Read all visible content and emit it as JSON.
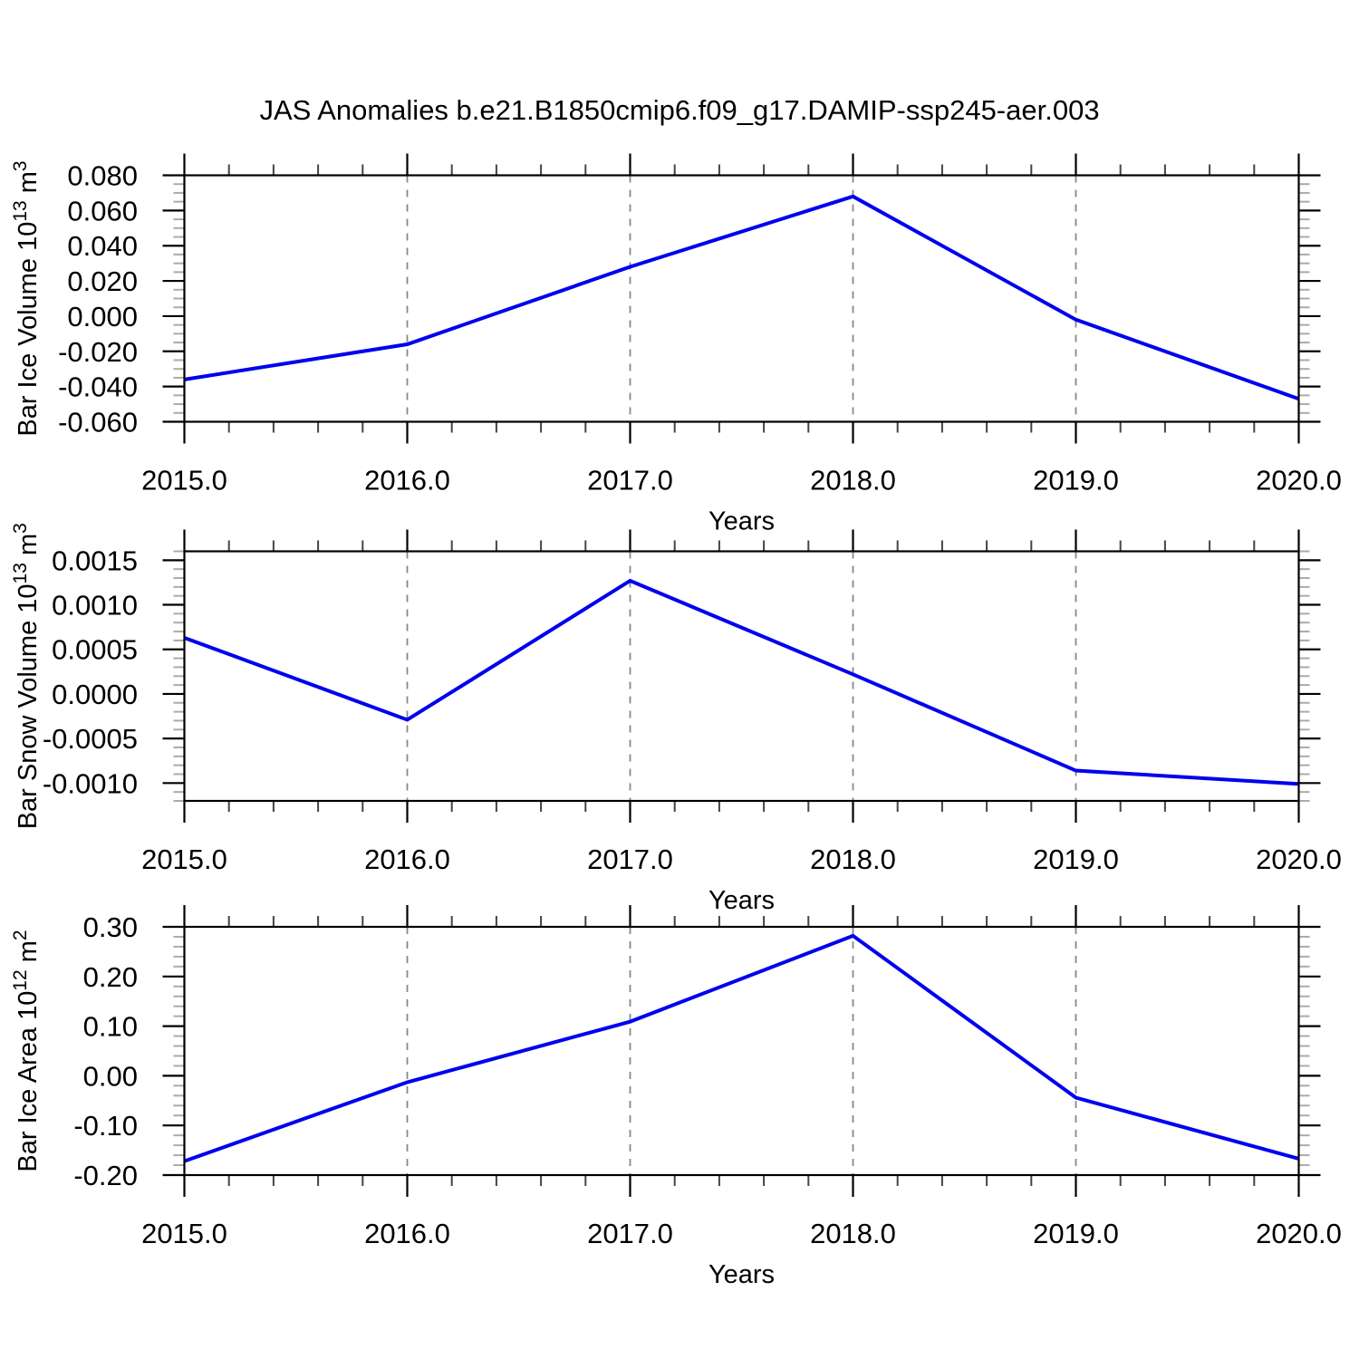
{
  "title": "JAS Anomalies b.e21.B1850cmip6.f09_g17.DAMIP-ssp245-aer.003",
  "chart_data": [
    {
      "type": "line",
      "name": "bar-ice-volume",
      "ylabel": "Bar Ice Volume 10^13 m^3",
      "ylabel_segments": [
        {
          "t": "Bar Ice Volume 10"
        },
        {
          "t": "13",
          "sup": true
        },
        {
          "t": " m"
        },
        {
          "t": "3",
          "sup": true
        }
      ],
      "xlabel": "Years",
      "x": [
        2015,
        2016,
        2017,
        2018,
        2019,
        2020
      ],
      "values": [
        -0.036,
        -0.016,
        0.028,
        0.068,
        -0.002,
        -0.047
      ],
      "xlim": [
        2015,
        2020
      ],
      "ylim": [
        -0.06,
        0.08
      ],
      "x_ticks": [
        2015,
        2016,
        2017,
        2018,
        2019,
        2020
      ],
      "x_tick_labels": [
        "2015.0",
        "2016.0",
        "2017.0",
        "2018.0",
        "2019.0",
        "2020.0"
      ],
      "y_ticks": [
        0.08,
        0.06,
        0.04,
        0.02,
        0.0,
        -0.02,
        -0.04,
        -0.06
      ],
      "y_tick_labels": [
        "0.080",
        "0.060",
        "0.040",
        "0.020",
        "0.000",
        "-0.020",
        "-0.040",
        "-0.060"
      ],
      "x_minor_step": 0.2,
      "y_minor_step": 0.005,
      "grid_x": [
        2016,
        2017,
        2018,
        2019
      ],
      "grid_on": true,
      "legend": "none",
      "line_color": "#0000ee"
    },
    {
      "type": "line",
      "name": "bar-snow-volume",
      "ylabel": "Bar Snow Volume 10^13 m^3",
      "ylabel_segments": [
        {
          "t": "Bar Snow Volume 10"
        },
        {
          "t": "13",
          "sup": true
        },
        {
          "t": " m"
        },
        {
          "t": "3",
          "sup": true
        }
      ],
      "xlabel": "Years",
      "x": [
        2015,
        2016,
        2017,
        2018,
        2019,
        2020
      ],
      "values": [
        0.00063,
        -0.00029,
        0.00127,
        0.00022,
        -0.00086,
        -0.00101
      ],
      "xlim": [
        2015,
        2020
      ],
      "ylim": [
        -0.0012,
        0.0016
      ],
      "x_ticks": [
        2015,
        2016,
        2017,
        2018,
        2019,
        2020
      ],
      "x_tick_labels": [
        "2015.0",
        "2016.0",
        "2017.0",
        "2018.0",
        "2019.0",
        "2020.0"
      ],
      "y_ticks": [
        0.0015,
        0.001,
        0.0005,
        0.0,
        -0.0005,
        -0.001
      ],
      "y_tick_labels": [
        "0.0015",
        "0.0010",
        "0.0005",
        "0.0000",
        "-0.0005",
        "-0.0010"
      ],
      "x_minor_step": 0.2,
      "y_minor_step": 0.0001,
      "grid_x": [
        2016,
        2017,
        2018,
        2019
      ],
      "grid_on": true,
      "legend": "none",
      "line_color": "#0000ee"
    },
    {
      "type": "line",
      "name": "bar-ice-area",
      "ylabel": "Bar Ice Area 10^12 m^2",
      "ylabel_segments": [
        {
          "t": "Bar Ice Area 10"
        },
        {
          "t": "12",
          "sup": true
        },
        {
          "t": " m"
        },
        {
          "t": "2",
          "sup": true
        }
      ],
      "xlabel": "Years",
      "x": [
        2015,
        2016,
        2017,
        2018,
        2019,
        2020
      ],
      "values": [
        -0.172,
        -0.013,
        0.109,
        0.282,
        -0.044,
        -0.167
      ],
      "xlim": [
        2015,
        2020
      ],
      "ylim": [
        -0.2,
        0.3
      ],
      "x_ticks": [
        2015,
        2016,
        2017,
        2018,
        2019,
        2020
      ],
      "x_tick_labels": [
        "2015.0",
        "2016.0",
        "2017.0",
        "2018.0",
        "2019.0",
        "2020.0"
      ],
      "y_ticks": [
        0.3,
        0.2,
        0.1,
        0.0,
        -0.1,
        -0.2
      ],
      "y_tick_labels": [
        "0.30",
        "0.20",
        "0.10",
        "0.00",
        "-0.10",
        "-0.20"
      ],
      "x_minor_step": 0.2,
      "y_minor_step": 0.02,
      "grid_x": [
        2016,
        2017,
        2018,
        2019
      ],
      "grid_on": true,
      "legend": "none",
      "line_color": "#0000ee"
    }
  ]
}
